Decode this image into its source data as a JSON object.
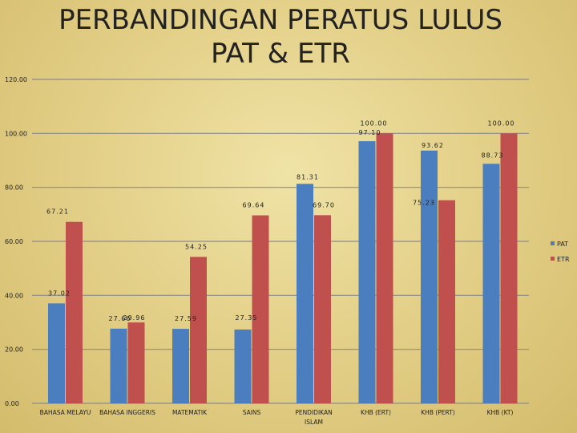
{
  "chart_data": {
    "type": "bar",
    "title_line1": "PERBANDINGAN PERATUS LULUS",
    "title_line2": "PAT & ETR",
    "categories": [
      [
        "BAHASA MELAYU"
      ],
      [
        "BAHASA INGGERIS"
      ],
      [
        "MATEMATIK"
      ],
      [
        "SAINS"
      ],
      [
        "PENDIDIKAN",
        "ISLAM"
      ],
      [
        "KHB (ERT)"
      ],
      [
        "KHB (PERT)"
      ],
      [
        "KHB (KT)"
      ]
    ],
    "series": [
      {
        "name": "PAT",
        "color": "#4a7ebf",
        "values": [
          37.02,
          27.66,
          27.59,
          27.35,
          81.31,
          97.1,
          93.62,
          88.73
        ],
        "labels": [
          "37.02",
          "27.66",
          "27.59",
          "27.35",
          "81.31",
          "97.10",
          "93.62",
          "88.73"
        ]
      },
      {
        "name": "ETR",
        "color": "#c0504d",
        "values": [
          67.21,
          29.96,
          54.25,
          69.64,
          69.7,
          100.0,
          75.23,
          100.0
        ],
        "labels": [
          "67.21",
          "29.96",
          "54.25",
          "69.64",
          "69.70",
          "100.00",
          "75.23",
          "100.00"
        ]
      }
    ],
    "yticks": [
      "0.00",
      "20.00",
      "40.00",
      "60.00",
      "80.00",
      "100.00",
      "120.00"
    ],
    "ylim": [
      0,
      120
    ],
    "grid": true,
    "legend_position": "right"
  }
}
